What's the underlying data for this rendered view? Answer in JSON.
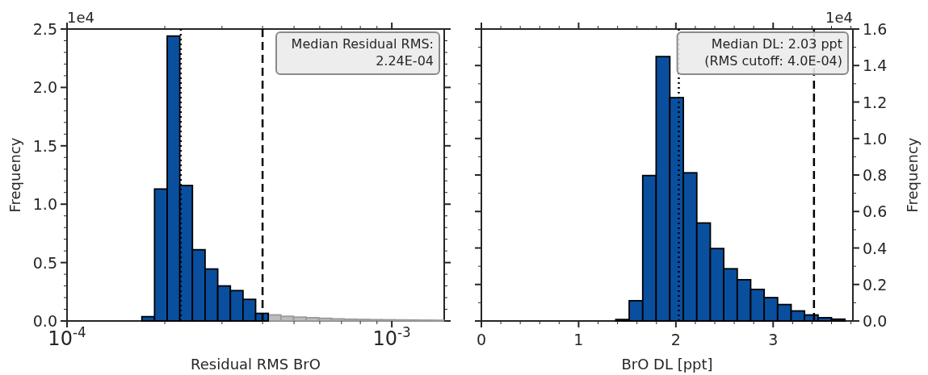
{
  "chart_data": [
    {
      "type": "histogram",
      "xlabel": "Residual RMS BrO",
      "ylabel": "Frequency",
      "log": "x",
      "bins": [
        0.00017,
        0.000186,
        0.0002034,
        0.0002225,
        0.0002433,
        0.0002661,
        0.0002911,
        0.0003184,
        0.0003482,
        0.0003808,
        0.0004165,
        0.0004556,
        0.0004983,
        0.000545,
        0.0005961,
        0.0006519,
        0.000713,
        0.0007798,
        0.0008529,
        0.0009328,
        0.00102,
        0.0011157,
        0.0012203,
        0.0013347,
        0.00145
      ],
      "series": [
        {
          "color": "#bdbdbd",
          "values": [
            null,
            null,
            null,
            null,
            null,
            null,
            null,
            null,
            null,
            null,
            0.052,
            0.04,
            0.033,
            0.028,
            0.023,
            0.018,
            0.015,
            0.013,
            0.011,
            0.01,
            0.009,
            0.008,
            0.007,
            0.006
          ]
        },
        {
          "color": "#0a4f9e",
          "values": [
            0.037,
            1.13,
            2.44,
            1.16,
            0.61,
            0.445,
            0.3,
            0.26,
            0.185,
            0.065,
            null,
            null,
            null,
            null,
            null,
            null,
            null,
            null,
            null,
            null,
            null,
            null,
            null,
            null
          ]
        }
      ],
      "xlim": [
        0.0001,
        0.00145
      ],
      "xticks": [
        {
          "value": 0.0001,
          "label": "10$^{-4}$"
        },
        {
          "value": 0.0002,
          "label": null
        },
        {
          "value": 0.0003,
          "label": null
        },
        {
          "value": 0.0004,
          "label": null
        },
        {
          "value": 0.0005,
          "label": null
        },
        {
          "value": 0.0006,
          "label": null
        },
        {
          "value": 0.0007,
          "label": null
        },
        {
          "value": 0.0008,
          "label": null
        },
        {
          "value": 0.0009,
          "label": null
        },
        {
          "value": 0.001,
          "label": "10$^{-3}$"
        }
      ],
      "ylim": [
        0,
        2.5
      ],
      "yticks": [
        {
          "value": 0,
          "label": "0.0"
        },
        {
          "value": 0.1,
          "label": null
        },
        {
          "value": 0.2,
          "label": null
        },
        {
          "value": 0.3,
          "label": null
        },
        {
          "value": 0.4,
          "label": null
        },
        0.5,
        {
          "value": 0.6,
          "label": null
        },
        {
          "value": 0.7,
          "label": null
        },
        {
          "value": 0.8,
          "label": null
        },
        {
          "value": 0.9,
          "label": null
        },
        {
          "value": 1,
          "label": "1.0"
        },
        {
          "value": 1.1,
          "label": null
        },
        {
          "value": 1.2,
          "label": null
        },
        {
          "value": 1.3,
          "label": null
        },
        {
          "value": 1.4,
          "label": null
        },
        1.5,
        {
          "value": 1.6,
          "label": null
        },
        {
          "value": 1.7,
          "label": null
        },
        {
          "value": 1.8,
          "label": null
        },
        {
          "value": 1.9,
          "label": null
        },
        {
          "value": 2,
          "label": "2.0"
        },
        {
          "value": 2.1,
          "label": null
        },
        {
          "value": 2.2,
          "label": null
        },
        {
          "value": 2.3,
          "label": null
        },
        {
          "value": 2.4,
          "label": null
        },
        2.5
      ],
      "ref_lines": [
        {
          "axis": "x",
          "value": 0.000224,
          "line_style": "dotted",
          "color": "#000000"
        },
        {
          "axis": "x",
          "value": 0.0004,
          "line_style": "dashed",
          "color": "#000000"
        }
      ],
      "annotations": [
        "1e4",
        "Median Residual RMS:\n2.24E-04"
      ]
    },
    {
      "type": "histogram",
      "xlabel": "BrO DL [ppt]",
      "y2label": "Frequency",
      "bins": [
        1.382,
        1.52,
        1.659,
        1.797,
        1.938,
        2.077,
        2.215,
        2.354,
        2.492,
        2.631,
        2.769,
        2.908,
        3.046,
        3.185,
        3.323,
        3.462,
        3.6,
        3.738
      ],
      "series": [
        {
          "color": "#0a4f9e",
          "axis": "y2",
          "values": [
            0.008,
            0.111,
            0.797,
            1.449,
            1.224,
            0.812,
            0.537,
            0.397,
            0.286,
            0.226,
            0.173,
            0.128,
            0.09,
            0.055,
            0.033,
            0.018,
            0.01
          ]
        }
      ],
      "xlim": [
        0,
        3.82
      ],
      "xticks": [
        0,
        {
          "value": 0.2,
          "label": null
        },
        {
          "value": 0.4,
          "label": null
        },
        {
          "value": 0.6,
          "label": null
        },
        {
          "value": 0.8,
          "label": null
        },
        1,
        {
          "value": 1.2,
          "label": null
        },
        {
          "value": 1.4,
          "label": null
        },
        {
          "value": 1.6,
          "label": null
        },
        {
          "value": 1.8,
          "label": null
        },
        2,
        {
          "value": 2.2,
          "label": null
        },
        {
          "value": 2.4,
          "label": null
        },
        {
          "value": 2.6,
          "label": null
        },
        {
          "value": 2.8,
          "label": null
        },
        3,
        {
          "value": 3.2,
          "label": null
        },
        {
          "value": 3.4,
          "label": null
        },
        {
          "value": 3.6,
          "label": null
        },
        {
          "value": 3.8,
          "label": null
        }
      ],
      "y2lim": [
        0,
        1.6
      ],
      "y2ticks": [
        {
          "value": 0,
          "label": "0.0"
        },
        {
          "value": 0.1,
          "label": null
        },
        0.2,
        {
          "value": 0.3,
          "label": null
        },
        0.4,
        {
          "value": 0.5,
          "label": null
        },
        0.6,
        {
          "value": 0.7,
          "label": null
        },
        0.8,
        {
          "value": 0.9,
          "label": null
        },
        {
          "value": 1,
          "label": "1.0"
        },
        {
          "value": 1.1,
          "label": null
        },
        1.2,
        {
          "value": 1.3,
          "label": null
        },
        1.4,
        {
          "value": 1.5,
          "label": null
        },
        1.6
      ],
      "ref_lines": [
        {
          "axis": "x",
          "value": 2.03,
          "line_style": "dotted",
          "color": "#000000"
        },
        {
          "axis": "x",
          "value": 3.42,
          "line_style": "dashed",
          "color": "#000000"
        }
      ],
      "annotations": [
        "1e4",
        "Median DL: 2.03 ppt\n(RMS cutoff: 4.0E-04)"
      ]
    }
  ]
}
